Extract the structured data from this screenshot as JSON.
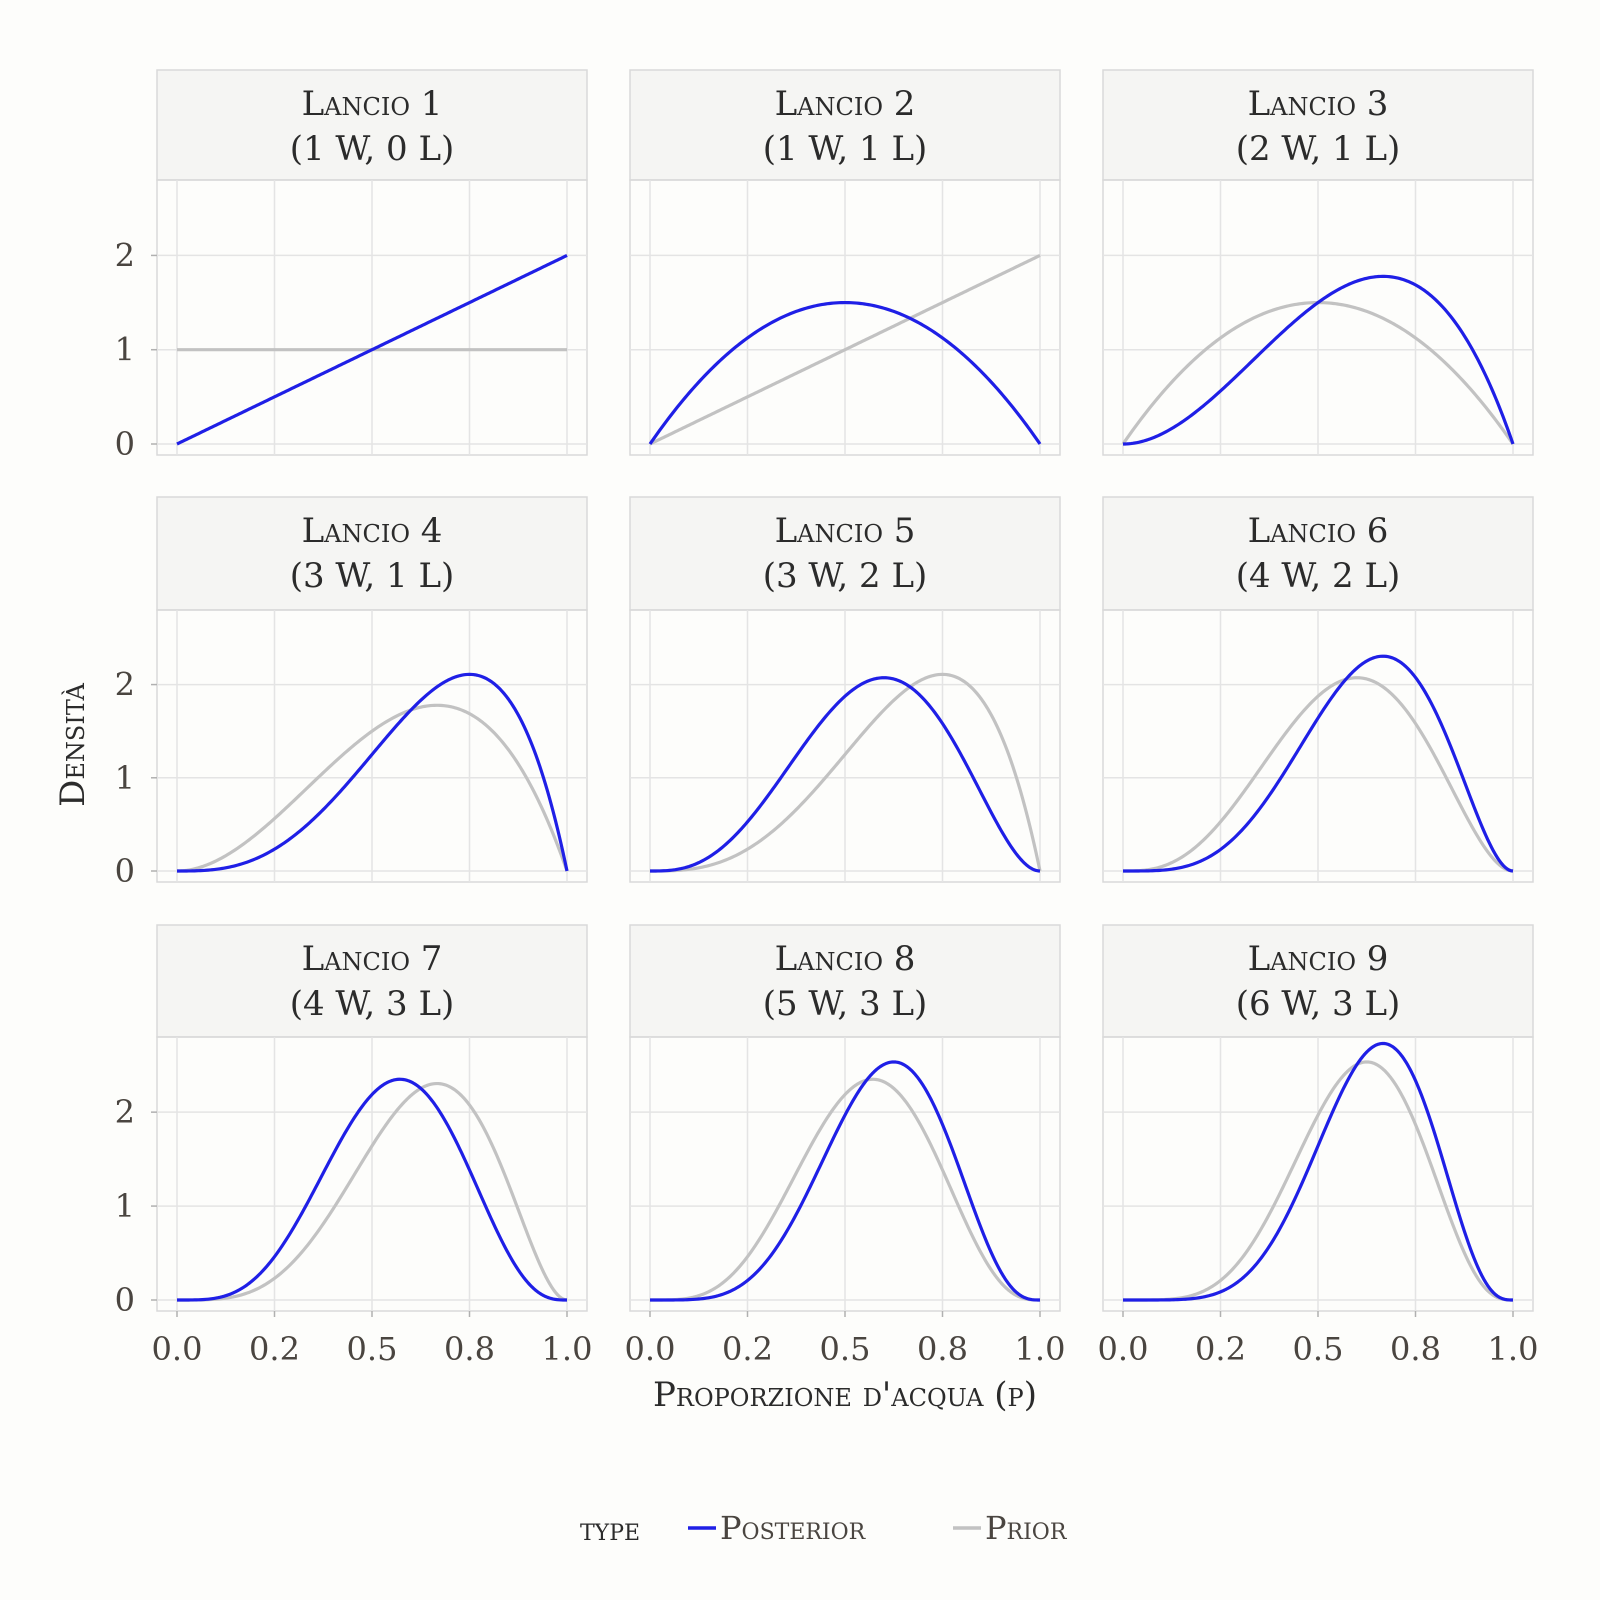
{
  "chart_data": {
    "type": "line",
    "layout": "facet-grid-3x3",
    "xlabel": "Proporzione d'acqua (p)",
    "ylabel": "Densità",
    "xlim": [
      0,
      1
    ],
    "ylim": [
      0,
      2.8
    ],
    "x_ticks": [
      0.0,
      0.25,
      0.5,
      0.75,
      1.0
    ],
    "x_tick_labels": [
      "0.0",
      "0.2",
      "0.5",
      "0.8",
      "1.0"
    ],
    "y_ticks": [
      0,
      1,
      2
    ],
    "y_tick_labels": [
      "0",
      "1",
      "2"
    ],
    "legend": {
      "title": "type",
      "position": "bottom",
      "entries": [
        {
          "label": "Posterior",
          "color": "#1f1fe6"
        },
        {
          "label": "Prior",
          "color": "#c2c2c2"
        }
      ]
    },
    "panels": [
      {
        "title": "Lancio 1",
        "subtitle": "(1 W, 0 L)",
        "prior": {
          "a": 1,
          "b": 1
        },
        "posterior": {
          "a": 2,
          "b": 1
        }
      },
      {
        "title": "Lancio 2",
        "subtitle": "(1 W, 1 L)",
        "prior": {
          "a": 2,
          "b": 1
        },
        "posterior": {
          "a": 2,
          "b": 2
        }
      },
      {
        "title": "Lancio 3",
        "subtitle": "(2 W, 1 L)",
        "prior": {
          "a": 2,
          "b": 2
        },
        "posterior": {
          "a": 3,
          "b": 2
        }
      },
      {
        "title": "Lancio 4",
        "subtitle": "(3 W, 1 L)",
        "prior": {
          "a": 3,
          "b": 2
        },
        "posterior": {
          "a": 4,
          "b": 2
        }
      },
      {
        "title": "Lancio 5",
        "subtitle": "(3 W, 2 L)",
        "prior": {
          "a": 4,
          "b": 2
        },
        "posterior": {
          "a": 4,
          "b": 3
        }
      },
      {
        "title": "Lancio 6",
        "subtitle": "(4 W, 2 L)",
        "prior": {
          "a": 4,
          "b": 3
        },
        "posterior": {
          "a": 5,
          "b": 3
        }
      },
      {
        "title": "Lancio 7",
        "subtitle": "(4 W, 3 L)",
        "prior": {
          "a": 5,
          "b": 3
        },
        "posterior": {
          "a": 5,
          "b": 4
        }
      },
      {
        "title": "Lancio 8",
        "subtitle": "(5 W, 3 L)",
        "prior": {
          "a": 5,
          "b": 4
        },
        "posterior": {
          "a": 6,
          "b": 4
        }
      },
      {
        "title": "Lancio 9",
        "subtitle": "(6 W, 3 L)",
        "prior": {
          "a": 6,
          "b": 4
        },
        "posterior": {
          "a": 7,
          "b": 4
        }
      }
    ]
  }
}
